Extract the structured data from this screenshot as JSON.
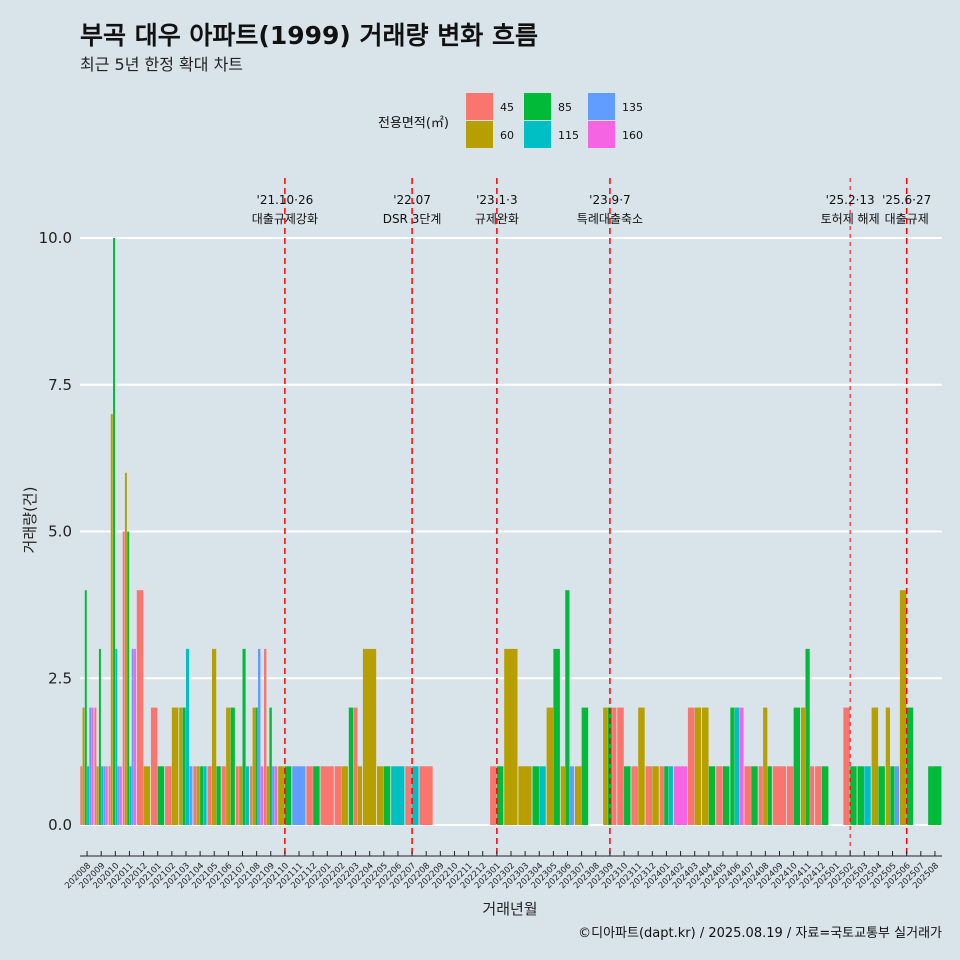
{
  "chart_data": {
    "type": "bar",
    "title": "부곡 대우 아파트(1999) 거래량 변화 흐름",
    "subtitle": "최근 5년 한정 확대 차트",
    "xlabel": "거래년월",
    "ylabel": "거래량(건)",
    "ylim": [
      0,
      10.5
    ],
    "yticks": [
      "0.0",
      "2.5",
      "5.0",
      "7.5",
      "10.0"
    ],
    "grid": true,
    "legend": {
      "title": "전용면적(㎡)",
      "position": "top",
      "entries": [
        {
          "label": "45",
          "color": "#f8766d"
        },
        {
          "label": "60",
          "color": "#b79f00"
        },
        {
          "label": "85",
          "color": "#00ba38"
        },
        {
          "label": "115",
          "color": "#00bfc4"
        },
        {
          "label": "135",
          "color": "#619cff"
        },
        {
          "label": "160",
          "color": "#f564e3"
        }
      ]
    },
    "categories": [
      "202008",
      "202009",
      "202010",
      "202011",
      "202012",
      "202101",
      "202102",
      "202103",
      "202104",
      "202105",
      "202106",
      "202107",
      "202108",
      "202109",
      "202110",
      "202111",
      "202112",
      "202201",
      "202202",
      "202203",
      "202204",
      "202205",
      "202206",
      "202207",
      "202208",
      "202209",
      "202210",
      "202211",
      "202212",
      "202301",
      "202302",
      "202303",
      "202304",
      "202305",
      "202306",
      "202307",
      "202308",
      "202309",
      "202310",
      "202311",
      "202312",
      "202401",
      "202402",
      "202403",
      "202404",
      "202405",
      "202406",
      "202407",
      "202408",
      "202409",
      "202410",
      "202411",
      "202412",
      "202501",
      "202502",
      "202503",
      "202504",
      "202505",
      "202506",
      "202507",
      "202508"
    ],
    "bars": [
      {
        "m": "202008",
        "s": [
          [
            45,
            1
          ],
          [
            60,
            2
          ],
          [
            85,
            4
          ],
          [
            115,
            1
          ],
          [
            135,
            2
          ],
          [
            160,
            2
          ]
        ]
      },
      {
        "m": "202009",
        "s": [
          [
            45,
            2
          ],
          [
            60,
            1
          ],
          [
            85,
            3
          ],
          [
            115,
            1
          ],
          [
            135,
            1
          ],
          [
            160,
            1
          ]
        ]
      },
      {
        "m": "202010",
        "s": [
          [
            45,
            1
          ],
          [
            60,
            7
          ],
          [
            85,
            10
          ],
          [
            115,
            3
          ],
          [
            135,
            1
          ],
          [
            160,
            1
          ]
        ]
      },
      {
        "m": "202011",
        "s": [
          [
            45,
            5
          ],
          [
            60,
            6
          ],
          [
            85,
            5
          ],
          [
            115,
            1
          ],
          [
            135,
            3
          ],
          [
            160,
            3
          ]
        ]
      },
      {
        "m": "202012",
        "s": [
          [
            45,
            4
          ],
          [
            60,
            1
          ]
        ]
      },
      {
        "m": "202101",
        "s": [
          [
            45,
            2
          ],
          [
            85,
            1
          ]
        ]
      },
      {
        "m": "202102",
        "s": [
          [
            45,
            1
          ],
          [
            60,
            2
          ]
        ]
      },
      {
        "m": "202103",
        "s": [
          [
            60,
            2
          ],
          [
            85,
            2
          ],
          [
            115,
            3
          ],
          [
            135,
            1
          ]
        ]
      },
      {
        "m": "202104",
        "s": [
          [
            45,
            1
          ],
          [
            60,
            1
          ],
          [
            85,
            1
          ],
          [
            115,
            1
          ]
        ]
      },
      {
        "m": "202105",
        "s": [
          [
            45,
            1
          ],
          [
            60,
            3
          ],
          [
            85,
            1
          ]
        ]
      },
      {
        "m": "202106",
        "s": [
          [
            45,
            1
          ],
          [
            60,
            2
          ],
          [
            85,
            2
          ]
        ]
      },
      {
        "m": "202107",
        "s": [
          [
            45,
            1
          ],
          [
            60,
            1
          ],
          [
            85,
            3
          ],
          [
            115,
            1
          ]
        ]
      },
      {
        "m": "202108",
        "s": [
          [
            45,
            1
          ],
          [
            60,
            2
          ],
          [
            85,
            2
          ],
          [
            135,
            3
          ],
          [
            160,
            1
          ]
        ]
      },
      {
        "m": "202109",
        "s": [
          [
            45,
            3
          ],
          [
            60,
            1
          ],
          [
            85,
            2
          ],
          [
            135,
            1
          ],
          [
            160,
            1
          ]
        ]
      },
      {
        "m": "202110",
        "s": [
          [
            60,
            1
          ],
          [
            85,
            1
          ]
        ]
      },
      {
        "m": "202111",
        "s": [
          [
            135,
            1
          ]
        ]
      },
      {
        "m": "202112",
        "s": [
          [
            45,
            1
          ],
          [
            85,
            1
          ]
        ]
      },
      {
        "m": "202201",
        "s": [
          [
            45,
            1
          ]
        ]
      },
      {
        "m": "202202",
        "s": [
          [
            45,
            1
          ],
          [
            60,
            1
          ]
        ]
      },
      {
        "m": "202203",
        "s": [
          [
            85,
            2
          ],
          [
            45,
            2
          ],
          [
            60,
            1
          ]
        ]
      },
      {
        "m": "202204",
        "s": [
          [
            60,
            3
          ]
        ]
      },
      {
        "m": "202205",
        "s": [
          [
            60,
            1
          ],
          [
            85,
            1
          ]
        ]
      },
      {
        "m": "202206",
        "s": [
          [
            115,
            1
          ]
        ]
      },
      {
        "m": "202207",
        "s": [
          [
            45,
            1
          ],
          [
            115,
            1
          ]
        ]
      },
      {
        "m": "202208",
        "s": [
          [
            45,
            1
          ]
        ]
      },
      {
        "m": "202209",
        "s": []
      },
      {
        "m": "202210",
        "s": []
      },
      {
        "m": "202211",
        "s": []
      },
      {
        "m": "202212",
        "s": []
      },
      {
        "m": "202301",
        "s": [
          [
            45,
            1
          ],
          [
            85,
            1
          ]
        ]
      },
      {
        "m": "202302",
        "s": [
          [
            60,
            3
          ]
        ]
      },
      {
        "m": "202303",
        "s": [
          [
            60,
            1
          ]
        ]
      },
      {
        "m": "202304",
        "s": [
          [
            85,
            1
          ],
          [
            115,
            1
          ]
        ]
      },
      {
        "m": "202305",
        "s": [
          [
            60,
            2
          ],
          [
            85,
            3
          ]
        ]
      },
      {
        "m": "202306",
        "s": [
          [
            60,
            1
          ],
          [
            85,
            4
          ],
          [
            135,
            1
          ]
        ]
      },
      {
        "m": "202307",
        "s": [
          [
            60,
            1
          ],
          [
            85,
            2
          ]
        ]
      },
      {
        "m": "202308",
        "s": []
      },
      {
        "m": "202309",
        "s": [
          [
            60,
            2
          ],
          [
            85,
            2
          ],
          [
            45,
            2
          ]
        ]
      },
      {
        "m": "202310",
        "s": [
          [
            45,
            2
          ],
          [
            85,
            1
          ]
        ]
      },
      {
        "m": "202311",
        "s": [
          [
            45,
            1
          ],
          [
            60,
            2
          ]
        ]
      },
      {
        "m": "202312",
        "s": [
          [
            45,
            1
          ],
          [
            60,
            1
          ]
        ]
      },
      {
        "m": "202401",
        "s": [
          [
            45,
            1
          ],
          [
            85,
            1
          ],
          [
            115,
            1
          ]
        ]
      },
      {
        "m": "202402",
        "s": [
          [
            160,
            1
          ]
        ]
      },
      {
        "m": "202403",
        "s": [
          [
            45,
            2
          ],
          [
            60,
            2
          ]
        ]
      },
      {
        "m": "202404",
        "s": [
          [
            60,
            2
          ],
          [
            85,
            1
          ]
        ]
      },
      {
        "m": "202405",
        "s": [
          [
            45,
            1
          ],
          [
            85,
            1
          ]
        ]
      },
      {
        "m": "202406",
        "s": [
          [
            85,
            2
          ],
          [
            115,
            2
          ],
          [
            160,
            2
          ]
        ]
      },
      {
        "m": "202407",
        "s": [
          [
            45,
            1
          ],
          [
            85,
            1
          ]
        ]
      },
      {
        "m": "202408",
        "s": [
          [
            45,
            1
          ],
          [
            60,
            2
          ],
          [
            85,
            1
          ]
        ]
      },
      {
        "m": "202409",
        "s": [
          [
            45,
            1
          ]
        ]
      },
      {
        "m": "202410",
        "s": [
          [
            45,
            1
          ],
          [
            85,
            2
          ]
        ]
      },
      {
        "m": "202411",
        "s": [
          [
            60,
            2
          ],
          [
            85,
            3
          ],
          [
            45,
            1
          ]
        ]
      },
      {
        "m": "202412",
        "s": [
          [
            45,
            1
          ],
          [
            85,
            1
          ]
        ]
      },
      {
        "m": "202501",
        "s": []
      },
      {
        "m": "202502",
        "s": [
          [
            45,
            2
          ],
          [
            85,
            1
          ]
        ]
      },
      {
        "m": "202503",
        "s": [
          [
            85,
            1
          ],
          [
            115,
            1
          ]
        ]
      },
      {
        "m": "202504",
        "s": [
          [
            60,
            2
          ],
          [
            85,
            1
          ]
        ]
      },
      {
        "m": "202505",
        "s": [
          [
            60,
            2
          ],
          [
            85,
            1
          ],
          [
            135,
            1
          ]
        ]
      },
      {
        "m": "202506",
        "s": [
          [
            60,
            4
          ],
          [
            85,
            2
          ]
        ]
      },
      {
        "m": "202507",
        "s": []
      },
      {
        "m": "202508",
        "s": [
          [
            85,
            1
          ]
        ]
      }
    ],
    "annotations": [
      {
        "month": "202110",
        "line1": "'21.10·26",
        "line2": "대출규제강화",
        "style": "dashed"
      },
      {
        "month": "202207",
        "line1": "'22.07",
        "line2": "DSR 3단계",
        "style": "dashed"
      },
      {
        "month": "202301",
        "line1": "'23.1·3",
        "line2": "규제완화",
        "style": "dashed"
      },
      {
        "month": "202309",
        "line1": "'23.9·7",
        "line2": "특례대출축소",
        "style": "dashed"
      },
      {
        "month": "202502",
        "line1": "'25.2·13",
        "line2": "토허제 해제",
        "style": "dotted"
      },
      {
        "month": "202506",
        "line1": "'25.6·27",
        "line2": "대출규제",
        "style": "dashed"
      }
    ]
  },
  "caption": "©디아파트(dapt.kr) / 2025.08.19 / 자료=국토교통부 실거래가"
}
